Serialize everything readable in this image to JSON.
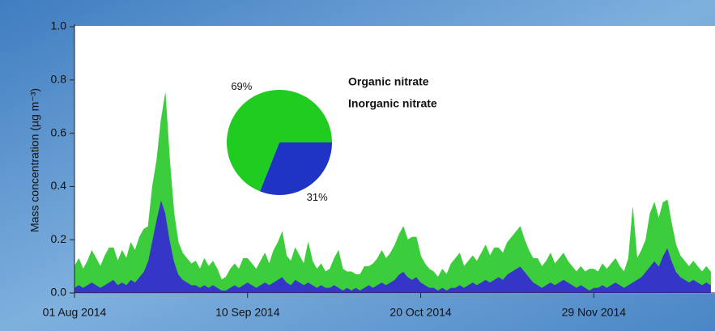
{
  "chart_data": [
    {
      "type": "stacked_area",
      "ylabel": "Mass concentration (µg m⁻³)",
      "ylim": [
        0,
        1.0
      ],
      "yticks": [
        {
          "value": 0,
          "label": "0.0"
        },
        0.2,
        0.4,
        0.6,
        0.8,
        {
          "value": 1.0,
          "label": "1.0"
        }
      ],
      "xlim": [
        "2014-08-01",
        "2014-12-27"
      ],
      "xticks": [
        {
          "value": "2014-08-01",
          "label": "01 Aug 2014"
        },
        {
          "value": "2014-09-10",
          "label": "10 Sep 2014"
        },
        {
          "value": "2014-10-20",
          "label": "20 Oct 2014"
        },
        {
          "value": "2014-11-29",
          "label": "29 Nov 2014"
        }
      ],
      "x": [
        "2014-08-01",
        "2014-08-02",
        "2014-08-03",
        "2014-08-04",
        "2014-08-05",
        "2014-08-06",
        "2014-08-07",
        "2014-08-08",
        "2014-08-09",
        "2014-08-10",
        "2014-08-11",
        "2014-08-12",
        "2014-08-13",
        "2014-08-14",
        "2014-08-15",
        "2014-08-16",
        "2014-08-17",
        "2014-08-18",
        "2014-08-19",
        "2014-08-20",
        "2014-08-21",
        "2014-08-22",
        "2014-08-23",
        "2014-08-24",
        "2014-08-25",
        "2014-08-26",
        "2014-08-27",
        "2014-08-28",
        "2014-08-29",
        "2014-08-30",
        "2014-08-31",
        "2014-09-01",
        "2014-09-02",
        "2014-09-03",
        "2014-09-04",
        "2014-09-05",
        "2014-09-06",
        "2014-09-07",
        "2014-09-08",
        "2014-09-09",
        "2014-09-10",
        "2014-09-11",
        "2014-09-12",
        "2014-09-13",
        "2014-09-14",
        "2014-09-15",
        "2014-09-16",
        "2014-09-17",
        "2014-09-18",
        "2014-09-19",
        "2014-09-20",
        "2014-09-21",
        "2014-09-22",
        "2014-09-23",
        "2014-09-24",
        "2014-09-25",
        "2014-09-26",
        "2014-09-27",
        "2014-09-28",
        "2014-09-29",
        "2014-09-30",
        "2014-10-01",
        "2014-10-02",
        "2014-10-03",
        "2014-10-04",
        "2014-10-05",
        "2014-10-06",
        "2014-10-07",
        "2014-10-08",
        "2014-10-09",
        "2014-10-10",
        "2014-10-11",
        "2014-10-12",
        "2014-10-13",
        "2014-10-14",
        "2014-10-15",
        "2014-10-16",
        "2014-10-17",
        "2014-10-18",
        "2014-10-19",
        "2014-10-20",
        "2014-10-21",
        "2014-10-22",
        "2014-10-23",
        "2014-10-24",
        "2014-10-25",
        "2014-10-26",
        "2014-10-27",
        "2014-10-28",
        "2014-10-29",
        "2014-10-30",
        "2014-10-31",
        "2014-11-01",
        "2014-11-02",
        "2014-11-03",
        "2014-11-04",
        "2014-11-05",
        "2014-11-06",
        "2014-11-07",
        "2014-11-08",
        "2014-11-09",
        "2014-11-10",
        "2014-11-11",
        "2014-11-12",
        "2014-11-13",
        "2014-11-14",
        "2014-11-15",
        "2014-11-16",
        "2014-11-17",
        "2014-11-18",
        "2014-11-19",
        "2014-11-20",
        "2014-11-21",
        "2014-11-22",
        "2014-11-23",
        "2014-11-24",
        "2014-11-25",
        "2014-11-26",
        "2014-11-27",
        "2014-11-28",
        "2014-11-29",
        "2014-11-30",
        "2014-12-01",
        "2014-12-02",
        "2014-12-03",
        "2014-12-04",
        "2014-12-05",
        "2014-12-06",
        "2014-12-07",
        "2014-12-08",
        "2014-12-09",
        "2014-12-10",
        "2014-12-11",
        "2014-12-12",
        "2014-12-13",
        "2014-12-14",
        "2014-12-15",
        "2014-12-16",
        "2014-12-17",
        "2014-12-18",
        "2014-12-19",
        "2014-12-20",
        "2014-12-21",
        "2014-12-22",
        "2014-12-23",
        "2014-12-24",
        "2014-12-25",
        "2014-12-26"
      ],
      "series": [
        {
          "name": "Inorganic nitrate",
          "color": "#3535c8",
          "values": [
            0.02,
            0.03,
            0.02,
            0.03,
            0.04,
            0.03,
            0.02,
            0.03,
            0.04,
            0.05,
            0.03,
            0.04,
            0.03,
            0.05,
            0.04,
            0.06,
            0.08,
            0.12,
            0.2,
            0.28,
            0.35,
            0.3,
            0.2,
            0.12,
            0.07,
            0.05,
            0.04,
            0.03,
            0.03,
            0.02,
            0.03,
            0.02,
            0.03,
            0.02,
            0.01,
            0.01,
            0.02,
            0.03,
            0.02,
            0.03,
            0.04,
            0.03,
            0.02,
            0.03,
            0.04,
            0.03,
            0.04,
            0.05,
            0.06,
            0.04,
            0.03,
            0.05,
            0.04,
            0.03,
            0.04,
            0.03,
            0.02,
            0.03,
            0.02,
            0.02,
            0.03,
            0.02,
            0.01,
            0.02,
            0.01,
            0.02,
            0.01,
            0.02,
            0.03,
            0.02,
            0.03,
            0.04,
            0.03,
            0.04,
            0.05,
            0.07,
            0.08,
            0.06,
            0.05,
            0.06,
            0.04,
            0.03,
            0.02,
            0.02,
            0.01,
            0.02,
            0.01,
            0.02,
            0.02,
            0.03,
            0.02,
            0.03,
            0.04,
            0.03,
            0.04,
            0.05,
            0.04,
            0.05,
            0.06,
            0.05,
            0.07,
            0.08,
            0.09,
            0.1,
            0.08,
            0.06,
            0.04,
            0.03,
            0.02,
            0.03,
            0.04,
            0.03,
            0.04,
            0.05,
            0.04,
            0.03,
            0.02,
            0.03,
            0.02,
            0.01,
            0.02,
            0.02,
            0.03,
            0.02,
            0.03,
            0.04,
            0.03,
            0.02,
            0.03,
            0.04,
            0.05,
            0.06,
            0.08,
            0.1,
            0.12,
            0.1,
            0.14,
            0.17,
            0.12,
            0.08,
            0.06,
            0.05,
            0.04,
            0.05,
            0.04,
            0.03,
            0.04,
            0.03
          ]
        },
        {
          "name": "Organic nitrate",
          "color": "#3ccd3c",
          "values": [
            0.08,
            0.1,
            0.07,
            0.09,
            0.12,
            0.1,
            0.08,
            0.11,
            0.13,
            0.12,
            0.09,
            0.12,
            0.1,
            0.14,
            0.12,
            0.15,
            0.16,
            0.13,
            0.2,
            0.22,
            0.3,
            0.45,
            0.3,
            0.18,
            0.12,
            0.1,
            0.09,
            0.08,
            0.09,
            0.07,
            0.1,
            0.08,
            0.09,
            0.07,
            0.04,
            0.05,
            0.07,
            0.08,
            0.07,
            0.1,
            0.09,
            0.08,
            0.07,
            0.09,
            0.11,
            0.08,
            0.12,
            0.14,
            0.17,
            0.1,
            0.09,
            0.12,
            0.1,
            0.08,
            0.15,
            0.09,
            0.07,
            0.08,
            0.06,
            0.07,
            0.1,
            0.14,
            0.08,
            0.06,
            0.07,
            0.05,
            0.06,
            0.08,
            0.07,
            0.09,
            0.1,
            0.12,
            0.1,
            0.11,
            0.13,
            0.15,
            0.17,
            0.14,
            0.16,
            0.15,
            0.1,
            0.08,
            0.07,
            0.06,
            0.05,
            0.07,
            0.06,
            0.09,
            0.11,
            0.12,
            0.08,
            0.09,
            0.1,
            0.09,
            0.11,
            0.13,
            0.1,
            0.12,
            0.11,
            0.1,
            0.12,
            0.13,
            0.14,
            0.15,
            0.12,
            0.1,
            0.09,
            0.1,
            0.08,
            0.09,
            0.11,
            0.08,
            0.09,
            0.1,
            0.08,
            0.07,
            0.06,
            0.07,
            0.06,
            0.08,
            0.07,
            0.06,
            0.08,
            0.07,
            0.08,
            0.09,
            0.07,
            0.06,
            0.1,
            0.28,
            0.08,
            0.1,
            0.12,
            0.2,
            0.22,
            0.18,
            0.2,
            0.18,
            0.14,
            0.1,
            0.08,
            0.07,
            0.06,
            0.07,
            0.06,
            0.05,
            0.06,
            0.05
          ]
        }
      ]
    },
    {
      "type": "pie",
      "values": [
        31,
        69
      ],
      "value_labels": [
        "31%",
        "69%"
      ],
      "colors": [
        "#1f33c4",
        "#1fcc1f"
      ]
    }
  ]
}
